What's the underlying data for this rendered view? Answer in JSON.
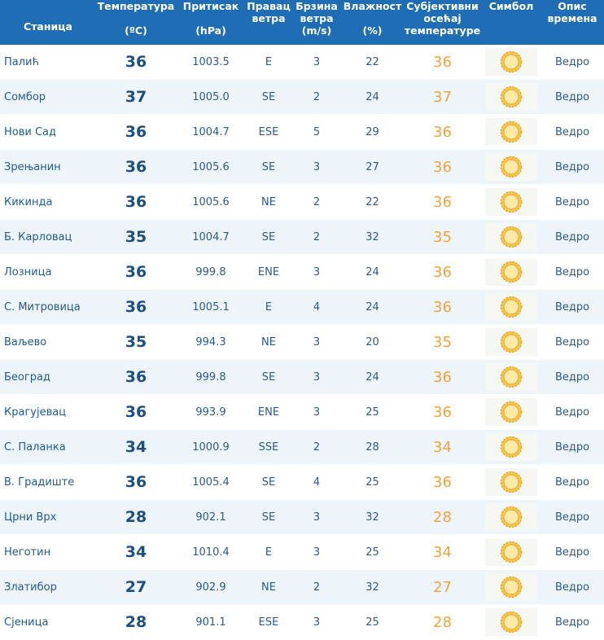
{
  "table": {
    "header": [
      [
        "Станица"
      ],
      [
        "Температура",
        "(ºC)"
      ],
      [
        "Притисак",
        "(hPa)"
      ],
      [
        "Правац",
        "ветра"
      ],
      [
        "Брзина",
        "ветра",
        "(m/s)"
      ],
      [
        "Влажност",
        "(%)"
      ],
      [
        "Субјективни",
        "осећај",
        "температуре"
      ],
      [
        "Симбол"
      ],
      [
        "Опис",
        "времена"
      ]
    ],
    "rows": [
      [
        "Палић",
        "36",
        "1003.5",
        "E",
        "3",
        "22",
        "36",
        "Ведро"
      ],
      [
        "Сомбор",
        "37",
        "1005.0",
        "SE",
        "2",
        "24",
        "37",
        "Ведро"
      ],
      [
        "Нови Сад",
        "36",
        "1004.7",
        "ESE",
        "5",
        "29",
        "36",
        "Ведро"
      ],
      [
        "Зрењанин",
        "36",
        "1005.6",
        "SE",
        "3",
        "27",
        "36",
        "Ведро"
      ],
      [
        "Кикинда",
        "36",
        "1005.6",
        "NE",
        "2",
        "22",
        "36",
        "Ведро"
      ],
      [
        "Б. Карловац",
        "35",
        "1004.7",
        "SE",
        "2",
        "32",
        "35",
        "Ведро"
      ],
      [
        "Лозница",
        "36",
        "999.8",
        "ENE",
        "3",
        "24",
        "36",
        "Ведро"
      ],
      [
        "С. Митровица",
        "36",
        "1005.1",
        "E",
        "4",
        "24",
        "36",
        "Ведро"
      ],
      [
        "Ваљево",
        "35",
        "994.3",
        "NE",
        "3",
        "20",
        "35",
        "Ведро"
      ],
      [
        "Београд",
        "36",
        "999.8",
        "SE",
        "3",
        "24",
        "36",
        "Ведро"
      ],
      [
        "Крагујевац",
        "36",
        "993.9",
        "ENE",
        "3",
        "25",
        "36",
        "Ведро"
      ],
      [
        "С. Паланка",
        "34",
        "1000.9",
        "SSE",
        "2",
        "28",
        "34",
        "Ведро"
      ],
      [
        "В. Градиште",
        "36",
        "1005.4",
        "SE",
        "4",
        "25",
        "36",
        "Ведро"
      ],
      [
        "Црни Врх",
        "28",
        "902.1",
        "SE",
        "3",
        "32",
        "28",
        "Ведро"
      ],
      [
        "Неготин",
        "34",
        "1010.4",
        "E",
        "3",
        "25",
        "34",
        "Ведро"
      ],
      [
        "Златибор",
        "27",
        "902.9",
        "NE",
        "2",
        "32",
        "27",
        "Ведро"
      ],
      [
        "Сјеница",
        "28",
        "901.1",
        "ESE",
        "3",
        "25",
        "28",
        "Ведро"
      ]
    ]
  }
}
